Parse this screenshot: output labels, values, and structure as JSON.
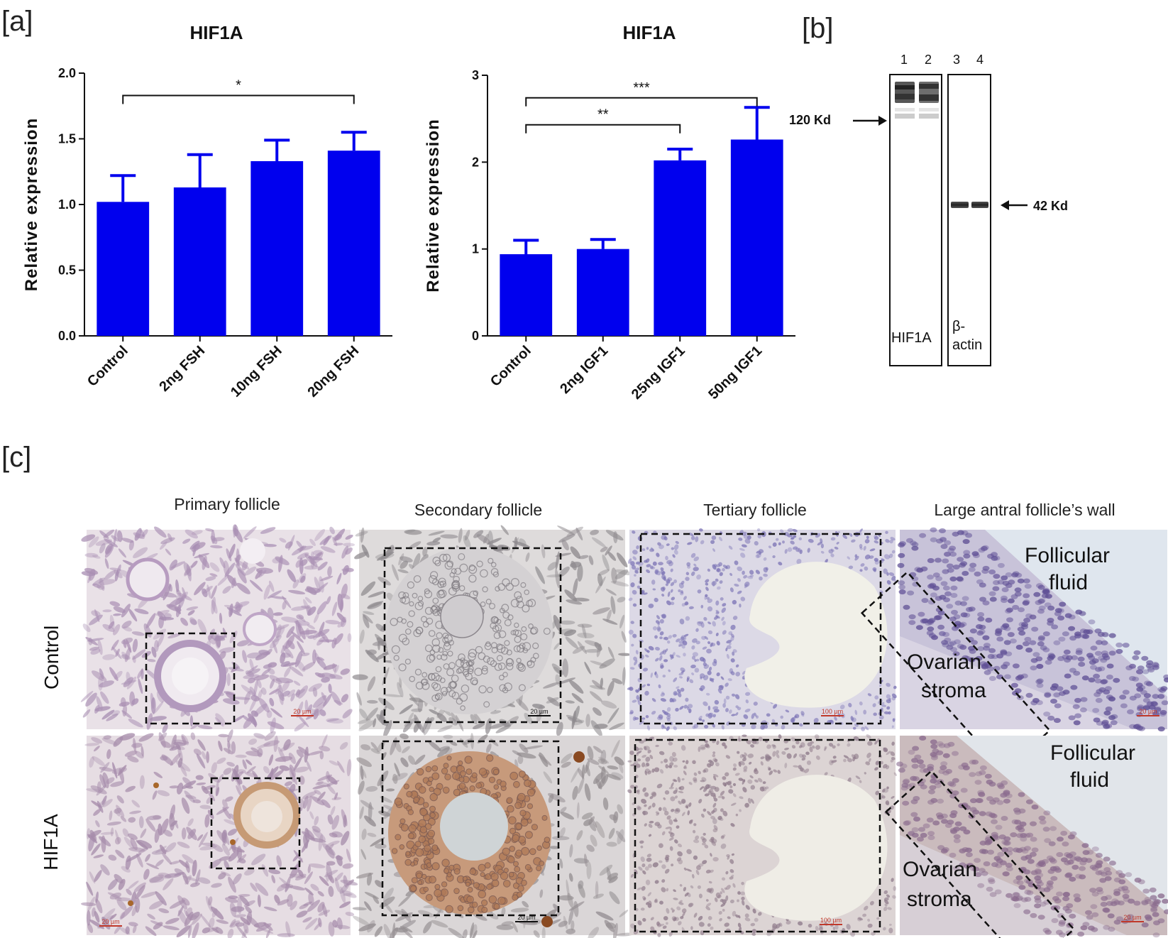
{
  "panels": {
    "a": "[a]",
    "b": "[b]",
    "c": "[c]"
  },
  "chart_data": [
    {
      "type": "bar",
      "title": "HIF1A",
      "ylabel": "Relative expression",
      "xlabel": "",
      "categories": [
        "Control",
        "2ng FSH",
        "10ng FSH",
        "20ng FSH"
      ],
      "values": [
        1.02,
        1.13,
        1.33,
        1.41
      ],
      "errors": [
        0.2,
        0.25,
        0.16,
        0.14
      ],
      "ylim": [
        0,
        2.0
      ],
      "yticks": [
        "0.0",
        "0.5",
        "1.0",
        "1.5",
        "2.0"
      ],
      "ytick_values": [
        0,
        0.5,
        1.0,
        1.5,
        2.0
      ],
      "color": "#0000ee",
      "significance": [
        {
          "from": 0,
          "to": 3,
          "label": "*",
          "level": 1.83
        }
      ]
    },
    {
      "type": "bar",
      "title": "HIF1A",
      "ylabel": "Relative expression",
      "xlabel": "",
      "categories": [
        "Control",
        "2ng IGF1",
        "25ng IGF1",
        "50ng IGF1"
      ],
      "values": [
        0.94,
        1.0,
        2.02,
        2.26
      ],
      "errors": [
        0.16,
        0.11,
        0.13,
        0.37
      ],
      "ylim": [
        0,
        3
      ],
      "yticks": [
        "0",
        "1",
        "2",
        "3"
      ],
      "ytick_values": [
        0,
        1,
        2,
        3
      ],
      "color": "#0000ee",
      "significance": [
        {
          "from": 0,
          "to": 3,
          "label": "***",
          "level": 2.74
        },
        {
          "from": 0,
          "to": 2,
          "label": "**",
          "level": 2.43
        }
      ]
    }
  ],
  "blot": {
    "lane_numbers": [
      "1",
      "2",
      "3",
      "4"
    ],
    "marker_120": "120 Kd",
    "marker_42": "42 Kd",
    "label_hif": "HIF1A",
    "label_actin_1": "β-",
    "label_actin_2": "actin"
  },
  "histology": {
    "columns": [
      "Primary follicle",
      "Secondary follicle",
      "Tertiary follicle",
      "Large antral follicle’s wall"
    ],
    "rows": [
      "Control",
      "HIF1A"
    ],
    "annot_fluid_1": "Follicular",
    "annot_fluid_2": "fluid",
    "annot_stroma_1": "Ovarian",
    "annot_stroma_2": "stroma",
    "scale_20": "20 µm",
    "scale_100": "100 µm"
  }
}
